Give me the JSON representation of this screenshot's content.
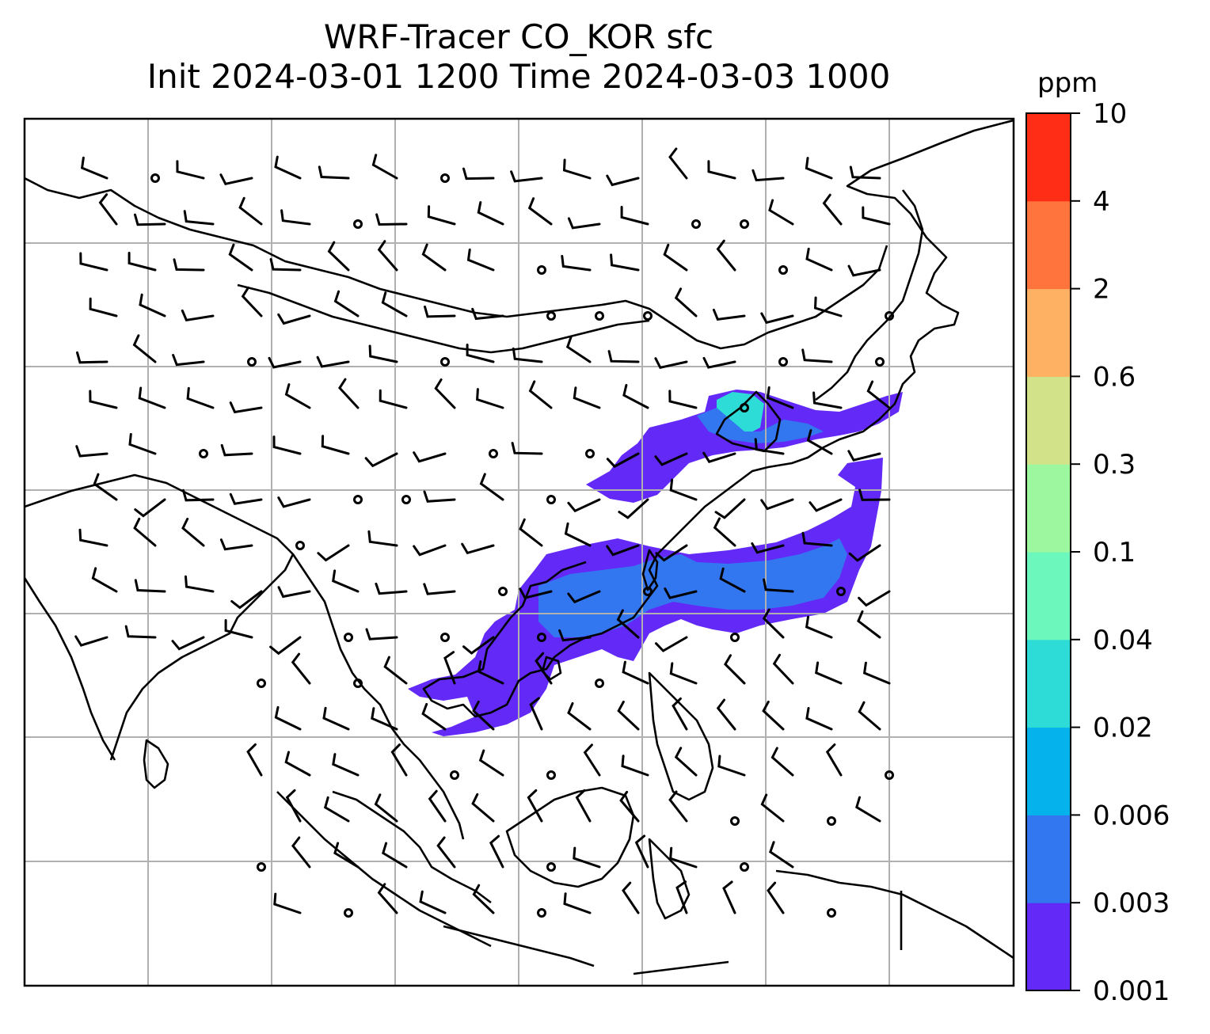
{
  "title": {
    "line1": "WRF-Tracer CO_KOR sfc",
    "line2": "Init 2024-03-01 1200 Time 2024-03-03 1000"
  },
  "colorbar": {
    "unit": "ppm",
    "levels": [
      "0.001",
      "0.003",
      "0.006",
      "0.02",
      "0.04",
      "0.1",
      "0.3",
      "0.6",
      "2",
      "4",
      "10"
    ],
    "colors": [
      "#6229f7",
      "#3377f0",
      "#05b2ec",
      "#2ddcd6",
      "#6cf8bd",
      "#9df79e",
      "#d1e289",
      "#feb063",
      "#ff743c",
      "#ff2c16"
    ]
  },
  "map": {
    "gridlines": true,
    "grid_color": "#b0b0b0",
    "coastline_color": "#000000",
    "vectors": "wind barbs"
  }
}
